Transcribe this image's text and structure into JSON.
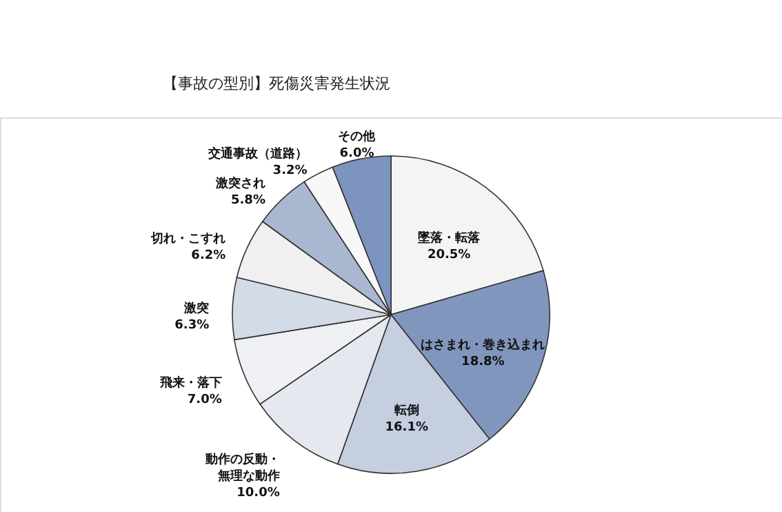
{
  "chart_data": {
    "type": "pie",
    "title": "【事故の型別】死傷災害発生状況",
    "categories": [
      "墜落・転落",
      "はさまれ・巻き込まれ",
      "転倒",
      "動作の反動・無理な動作",
      "飛来・落下",
      "激突",
      "切れ・こすれ",
      "激突され",
      "交通事故（道路）",
      "その他"
    ],
    "values": [
      20.5,
      18.8,
      16.1,
      10.0,
      7.0,
      6.3,
      6.2,
      5.8,
      3.2,
      6.0
    ],
    "value_labels": [
      "20.5%",
      "18.8%",
      "16.1%",
      "10.0%",
      "7.0%",
      "6.3%",
      "6.2%",
      "5.8%",
      "3.2%",
      "6.0%"
    ],
    "colors": [
      "#f4f4f4",
      "#8096bd",
      "#c5cfe0",
      "#e6e8ef",
      "#eef0f4",
      "#d4dbe8",
      "#f0f0f0",
      "#a9b7d0",
      "#f8f8f8",
      "#7c94bf"
    ]
  }
}
